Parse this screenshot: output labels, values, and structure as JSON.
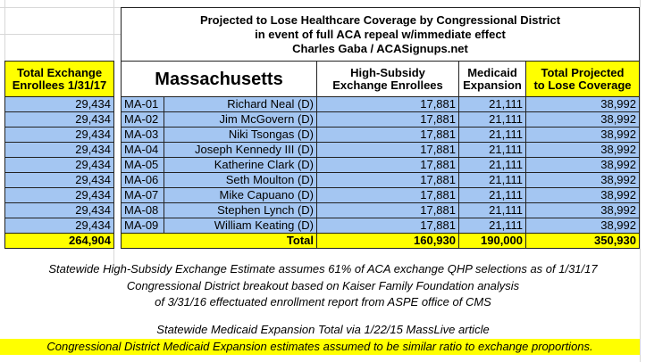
{
  "header": {
    "title_lines": [
      "Projected to Lose Healthcare Coverage by Congressional District",
      "in event of full ACA repeal w/immediate effect",
      "Charles Gaba / ACASignups.net"
    ]
  },
  "columns": {
    "enrollees": [
      "Total Exchange",
      "Enrollees 1/31/17"
    ],
    "state": "Massachusetts",
    "subsidy": [
      "High-Subsidy",
      "Exchange Enrollees"
    ],
    "medicaid": [
      "Medicaid",
      "Expansion"
    ],
    "total": [
      "Total Projected",
      "to Lose Coverage"
    ]
  },
  "rows": [
    [
      "29,434",
      "MA-01",
      "Richard Neal (D)",
      "17,881",
      "21,111",
      "38,992"
    ],
    [
      "29,434",
      "MA-02",
      "Jim McGovern (D)",
      "17,881",
      "21,111",
      "38,992"
    ],
    [
      "29,434",
      "MA-03",
      "Niki Tsongas (D)",
      "17,881",
      "21,111",
      "38,992"
    ],
    [
      "29,434",
      "MA-04",
      "Joseph Kennedy III (D)",
      "17,881",
      "21,111",
      "38,992"
    ],
    [
      "29,434",
      "MA-05",
      "Katherine Clark (D)",
      "17,881",
      "21,111",
      "38,992"
    ],
    [
      "29,434",
      "MA-06",
      "Seth Moulton (D)",
      "17,881",
      "21,111",
      "38,992"
    ],
    [
      "29,434",
      "MA-07",
      "Mike Capuano (D)",
      "17,881",
      "21,111",
      "38,992"
    ],
    [
      "29,434",
      "MA-08",
      "Stephen Lynch (D)",
      "17,881",
      "21,111",
      "38,992"
    ],
    [
      "29,434",
      "MA-09",
      "William Keating (D)",
      "17,881",
      "21,111",
      "38,992"
    ]
  ],
  "totals": {
    "enrollees": "264,904",
    "label": "Total",
    "subsidy": "160,930",
    "medicaid": "190,000",
    "total": "350,930"
  },
  "notes": [
    "Statewide High-Subsidy Exchange Estimate assumes 61% of ACA exchange QHP selections as of 1/31/17",
    "Congressional District breakout based on Kaiser Family Foundation analysis",
    "of 3/31/16 effectuated enrollment report from ASPE office of CMS",
    "Statewide Medicaid Expansion Total via 1/22/15 MassLive article",
    "Congressional District Medicaid Expansion estimates assumed to be similar ratio to exchange proportions."
  ]
}
